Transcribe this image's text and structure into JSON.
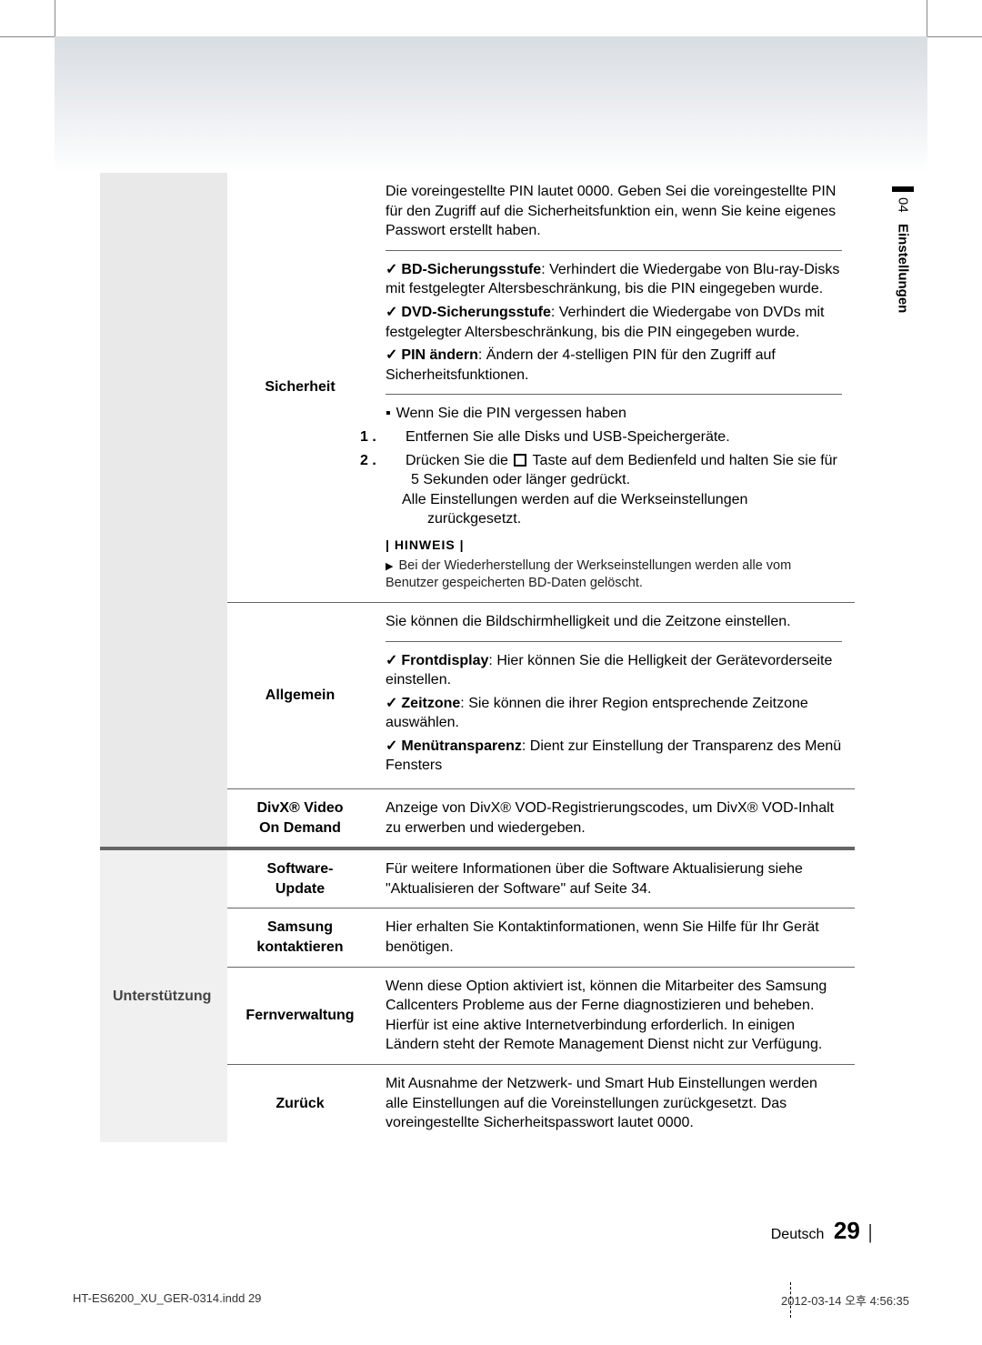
{
  "side": {
    "num": "04",
    "label": "Einstellungen"
  },
  "cat": {
    "blank": "",
    "support": "Unterstützung"
  },
  "sicherheit": {
    "label": "Sicherheit",
    "intro": "Die voreingestellte PIN lautet 0000. Geben Sei die voreingestellte PIN für den Zugriff auf die Sicherheitsfunktion ein, wenn Sie keine eigenes Passwort erstellt haben.",
    "bd_b": "BD-Sicherungsstufe",
    "bd_t": ": Verhindert die Wiedergabe von Blu-ray-Disks mit festgelegter Altersbeschränkung, bis die PIN eingegeben wurde.",
    "dvd_b": "DVD-Sicherungsstufe",
    "dvd_t": ": Verhindert die Wiedergabe von DVDs mit festgelegter Altersbeschränkung, bis die PIN eingegeben wurde.",
    "pin_b": "PIN ändern",
    "pin_t": ": Ändern der 4-stelligen PIN für den Zugriff auf Sicherheitsfunktionen.",
    "forgot": "Wenn Sie die PIN vergessen haben",
    "s1": "Entfernen Sie alle Disks und USB-Speichergeräte.",
    "s2a": "Drücken Sie die ",
    "s2b": " Taste auf dem Bedienfeld und halten Sie sie für 5 Sekunden oder länger gedrückt.",
    "s2c": "Alle Einstellungen werden auf die Werkseinstellungen zurückgesetzt.",
    "hinweis": "HINWEIS",
    "note": "Bei der Wiederherstellung der Werkseinstellungen werden alle vom Benutzer gespeicherten BD-Daten gelöscht."
  },
  "allgemein": {
    "label": "Allgemein",
    "intro": "Sie können die Bildschirmhelligkeit und die Zeitzone einstellen.",
    "fd_b": "Frontdisplay",
    "fd_t": ": Hier können Sie die Helligkeit der Gerätevorderseite einstellen.",
    "zz_b": "Zeitzone",
    "zz_t": ": Sie können die ihrer Region entsprechende Zeitzone auswählen.",
    "mt_b": "Menütransparenz",
    "mt_t": ": Dient zur Einstellung der Transparenz des Menü Fensters"
  },
  "divx": {
    "label1": "DivX® Video",
    "label2": "On Demand",
    "desc": "Anzeige von DivX® VOD-Registrierungscodes, um DivX® VOD-Inhalt zu erwerben und wiedergeben."
  },
  "update": {
    "label1": "Software-",
    "label2": "Update",
    "desc": "Für weitere Informationen über die Software Aktualisierung siehe \"Aktualisieren der Software\" auf Seite 34."
  },
  "kontakt": {
    "label1": "Samsung",
    "label2": "kontaktieren",
    "desc": "Hier erhalten Sie Kontaktinformationen, wenn Sie Hilfe für Ihr Gerät benötigen."
  },
  "fern": {
    "label": "Fernverwaltung",
    "desc": "Wenn diese Option aktiviert ist, können die Mitarbeiter des Samsung Callcenters Probleme aus der Ferne diagnostizieren und beheben. Hierfür ist eine aktive Internetverbindung erforderlich. In einigen Ländern steht der Remote Management Dienst nicht zur Verfügung."
  },
  "zurueck": {
    "label": "Zurück",
    "desc": "Mit Ausnahme der Netzwerk- und Smart Hub Einstellungen werden alle Einstellungen auf die Voreinstellungen zurückgesetzt. Das voreingestellte Sicherheitspasswort lautet 0000."
  },
  "footer": {
    "lang": "Deutsch",
    "page": "29"
  },
  "print": {
    "file": "HT-ES6200_XU_GER-0314.indd   29",
    "time": "2012-03-14   오후 4:56:35"
  }
}
